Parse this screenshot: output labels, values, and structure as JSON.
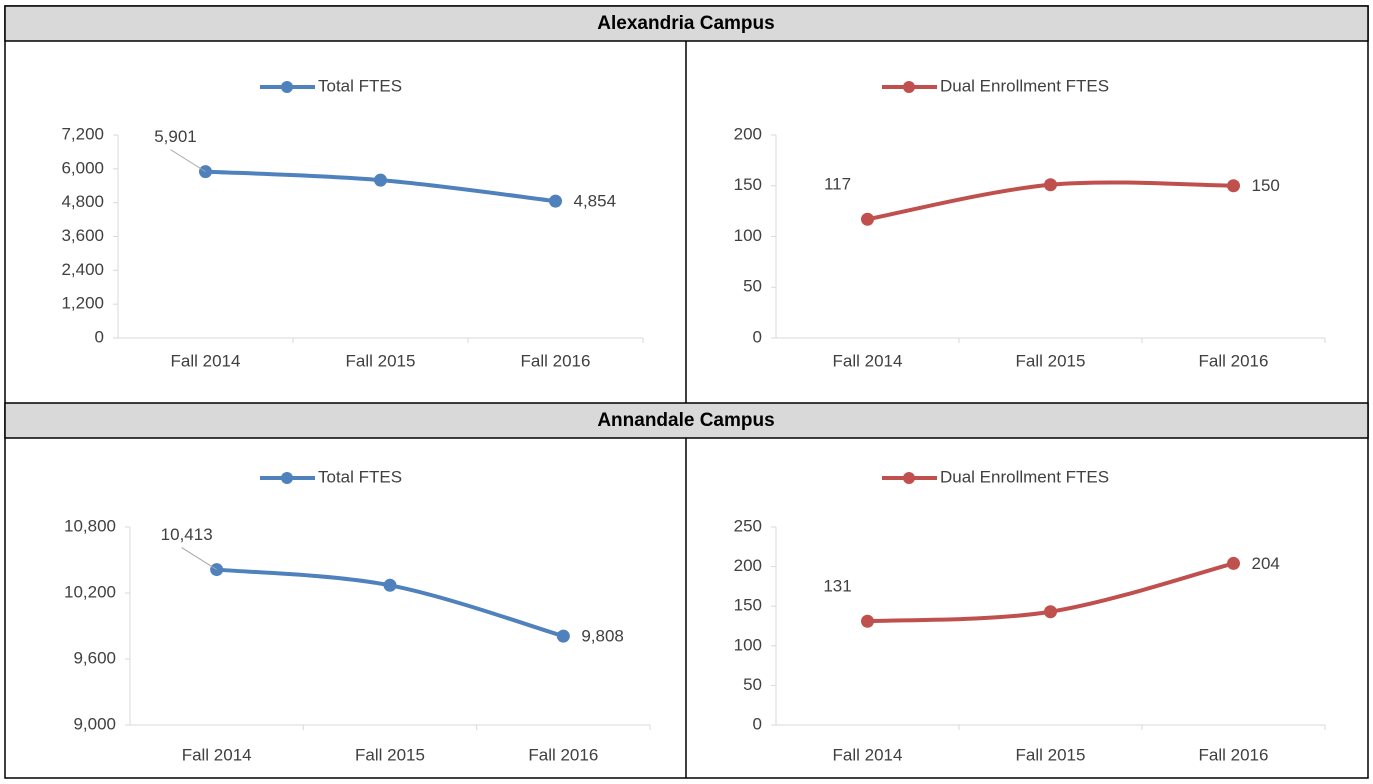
{
  "sections": [
    "Alexandria Campus",
    "Annandale Campus"
  ],
  "chart_data": [
    {
      "type": "line",
      "categories": [
        "Fall 2014",
        "Fall 2015",
        "Fall 2016"
      ],
      "series": [
        {
          "name": "Total FTES",
          "color": "#4f81bd",
          "values": [
            5901,
            5600,
            4854
          ],
          "value_labels": [
            "5,901",
            null,
            "4,854"
          ]
        }
      ],
      "ylim": [
        0,
        7200
      ],
      "yticks": [
        0,
        {
          "value": 1200,
          "label": "1,200"
        },
        {
          "value": 2400,
          "label": "2,400"
        },
        {
          "value": 3600,
          "label": "3,600"
        },
        {
          "value": 4800,
          "label": "4,800"
        },
        {
          "value": 6000,
          "label": "6,000"
        },
        {
          "value": 7200,
          "label": "7,200"
        }
      ],
      "legend": "top"
    },
    {
      "type": "line",
      "categories": [
        "Fall 2014",
        "Fall 2015",
        "Fall 2016"
      ],
      "series": [
        {
          "name": "Dual Enrollment FTES",
          "color": "#c0504d",
          "values": [
            117,
            151,
            150
          ],
          "value_labels": [
            "117",
            null,
            "150"
          ]
        }
      ],
      "ylim": [
        0,
        200
      ],
      "yticks": [
        0,
        50,
        100,
        150,
        200
      ],
      "legend": "top"
    },
    {
      "type": "line",
      "categories": [
        "Fall 2014",
        "Fall 2015",
        "Fall 2016"
      ],
      "series": [
        {
          "name": "Total FTES",
          "color": "#4f81bd",
          "values": [
            10413,
            10270,
            9808
          ],
          "value_labels": [
            "10,413",
            null,
            "9,808"
          ]
        }
      ],
      "ylim": [
        9000,
        10800
      ],
      "yticks": [
        {
          "value": 9000,
          "label": "9,000"
        },
        {
          "value": 9600,
          "label": "9,600"
        },
        {
          "value": 10200,
          "label": "10,200"
        },
        {
          "value": 10800,
          "label": "10,800"
        }
      ],
      "legend": "top"
    },
    {
      "type": "line",
      "categories": [
        "Fall 2014",
        "Fall 2015",
        "Fall 2016"
      ],
      "series": [
        {
          "name": "Dual Enrollment FTES",
          "color": "#c0504d",
          "values": [
            131,
            143,
            204
          ],
          "value_labels": [
            "131",
            null,
            "204"
          ]
        }
      ],
      "ylim": [
        0,
        250
      ],
      "yticks": [
        0,
        50,
        100,
        150,
        200,
        250
      ],
      "legend": "top"
    }
  ]
}
